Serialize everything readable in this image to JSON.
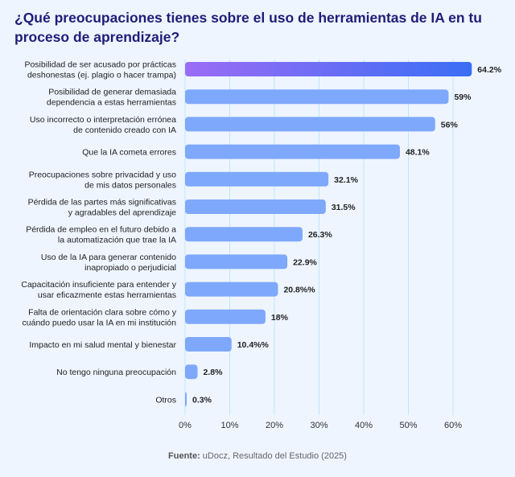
{
  "chart_data": {
    "type": "bar",
    "orientation": "horizontal",
    "title": "¿Qué preocupaciones tienes sobre el uso de herramientas de IA en tu proceso de aprendizaje?",
    "categories": [
      [
        "Posibilidad de ser acusado por prácticas",
        "deshonestas (ej. plagio o hacer trampa)"
      ],
      [
        "Posibilidad de generar demasiada",
        "dependencia a estas herramientas"
      ],
      [
        "Uso incorrecto o interpretación errónea",
        "de contenido creado con IA"
      ],
      [
        "Que la IA cometa errores"
      ],
      [
        "Preocupaciones sobre privacidad y uso",
        "de mis datos personales"
      ],
      [
        "Pérdida de las partes más significativas",
        "y agradables del aprendizaje"
      ],
      [
        "Pérdida de empleo en el futuro debido a",
        "la automatización que trae la IA"
      ],
      [
        "Uso de la IA para generar contenido",
        "inapropiado o perjudicial"
      ],
      [
        "Capacitación insuficiente para entender y",
        "usar eficazmente estas herramientas"
      ],
      [
        "Falta de orientación clara sobre cómo y",
        "cuándo puedo usar la IA en mi institución"
      ],
      [
        "Impacto en mi salud mental y bienestar"
      ],
      [
        "No tengo ninguna preocupación"
      ],
      [
        "Otros"
      ]
    ],
    "values": [
      64.2,
      59,
      56,
      48.1,
      32.1,
      31.5,
      26.3,
      22.9,
      20.8,
      18,
      10.4,
      2.8,
      0.3
    ],
    "data_labels": [
      "64.2%",
      "59%",
      "56%",
      "48.1%",
      "32.1%",
      "31.5%",
      "26.3%",
      "22.9%",
      "20.8%%",
      "18%",
      "10.4%%",
      "2.8%",
      "0.3%"
    ],
    "xlim": [
      0,
      60
    ],
    "xticks": [
      "0%",
      "10%",
      "20%",
      "30%",
      "40%",
      "50%",
      "60%"
    ],
    "grid": true,
    "colors": {
      "highlight_start": "#9b6cf5",
      "highlight_end": "#3b6ef5",
      "bar": "#7ea8fb",
      "grid": "#bfe6fb",
      "title": "#1f1d78"
    }
  },
  "source": {
    "label": "Fuente:",
    "text": " uDocz, Resultado del Estudio (2025)"
  }
}
